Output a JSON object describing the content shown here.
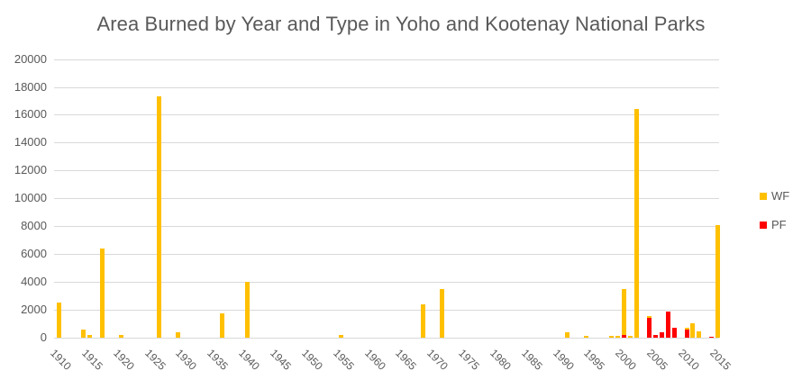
{
  "chart_data": {
    "type": "bar",
    "stacked": true,
    "title": "Area Burned by Year and Type in Yoho and Kootenay National Parks",
    "xlabel": "",
    "ylabel": "",
    "ylim": [
      0,
      20000
    ],
    "yticks": [
      0,
      2000,
      4000,
      6000,
      8000,
      10000,
      12000,
      14000,
      16000,
      18000,
      20000
    ],
    "xticks": [
      "1910",
      "1915",
      "1920",
      "1925",
      "1930",
      "1935",
      "1940",
      "1945",
      "1950",
      "1955",
      "1960",
      "1965",
      "1970",
      "1975",
      "1980",
      "1985",
      "1990",
      "1995",
      "2000",
      "2005",
      "2010",
      "2015"
    ],
    "grid": true,
    "legend_position": "right",
    "colors": {
      "WF": "#FFC000",
      "PF": "#FF0000"
    },
    "series": [
      {
        "name": "WF",
        "points": [
          {
            "x": 1910,
            "y": 2500
          },
          {
            "x": 1914,
            "y": 600
          },
          {
            "x": 1915,
            "y": 200
          },
          {
            "x": 1917,
            "y": 6400
          },
          {
            "x": 1920,
            "y": 200
          },
          {
            "x": 1926,
            "y": 17300
          },
          {
            "x": 1929,
            "y": 400
          },
          {
            "x": 1936,
            "y": 1750
          },
          {
            "x": 1940,
            "y": 4000
          },
          {
            "x": 1955,
            "y": 200
          },
          {
            "x": 1968,
            "y": 2400
          },
          {
            "x": 1971,
            "y": 3500
          },
          {
            "x": 1991,
            "y": 400
          },
          {
            "x": 1994,
            "y": 100
          },
          {
            "x": 1998,
            "y": 100
          },
          {
            "x": 1999,
            "y": 100
          },
          {
            "x": 2000,
            "y": 3300
          },
          {
            "x": 2001,
            "y": 100
          },
          {
            "x": 2002,
            "y": 16400
          },
          {
            "x": 2004,
            "y": 100
          },
          {
            "x": 2010,
            "y": 100
          },
          {
            "x": 2011,
            "y": 1050
          },
          {
            "x": 2012,
            "y": 450
          },
          {
            "x": 2015,
            "y": 8100
          }
        ]
      },
      {
        "name": "PF",
        "points": [
          {
            "x": 2000,
            "y": 200
          },
          {
            "x": 2004,
            "y": 1450
          },
          {
            "x": 2005,
            "y": 200
          },
          {
            "x": 2006,
            "y": 400
          },
          {
            "x": 2007,
            "y": 1900
          },
          {
            "x": 2008,
            "y": 700
          },
          {
            "x": 2010,
            "y": 600
          },
          {
            "x": 2014,
            "y": 80
          }
        ]
      }
    ]
  }
}
